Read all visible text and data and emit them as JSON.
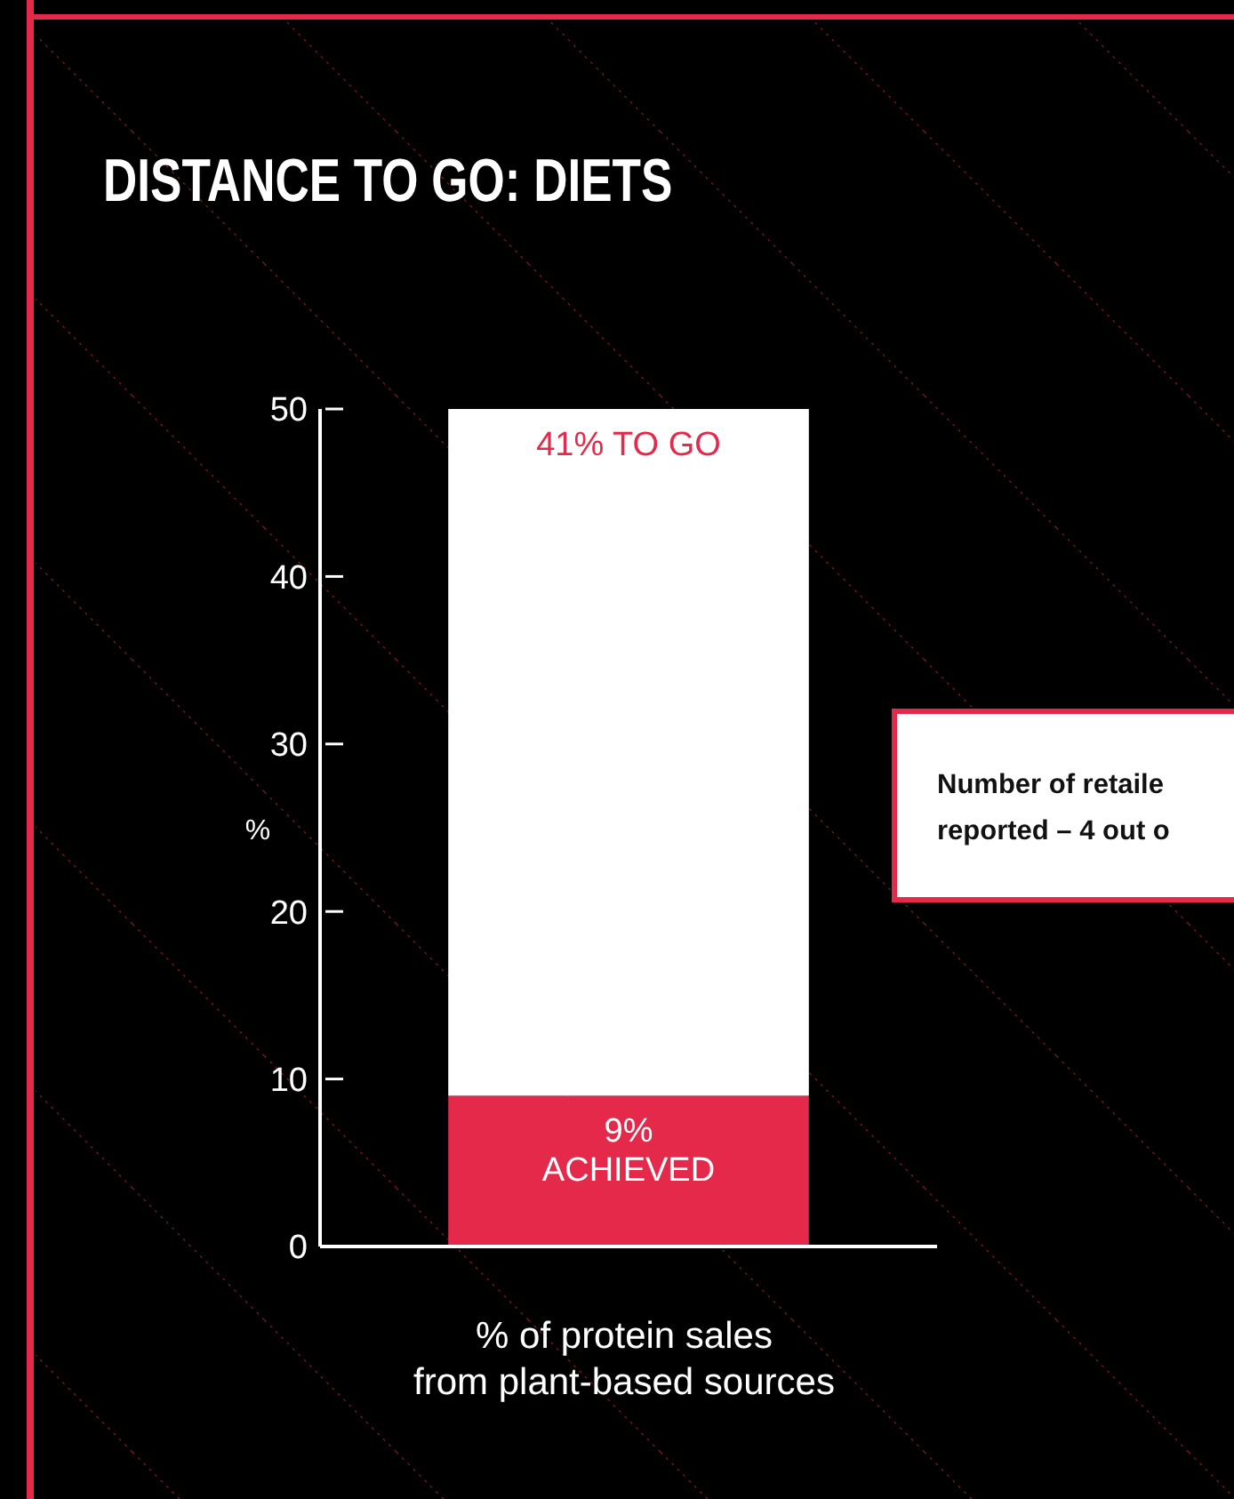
{
  "chart_data": {
    "type": "bar",
    "title": "DISTANCE TO GO: DIETS",
    "xlabel": "% of protein sales from plant-based sources",
    "ylabel": "%",
    "categories": [
      null
    ],
    "stacked": true,
    "series": [
      {
        "color": "#e5294a",
        "values": [
          9
        ],
        "value_labels": [
          "9%\nACHIEVED"
        ]
      },
      {
        "color": "#ffffff",
        "values": [
          41
        ],
        "value_labels": [
          "41% TO GO"
        ]
      }
    ],
    "ylim": [
      0,
      50
    ],
    "yticks": [
      0,
      10,
      20,
      30,
      40,
      50
    ],
    "grid": false,
    "annotations": [
      "Number of retaile\nreported – 4 out o"
    ]
  }
}
